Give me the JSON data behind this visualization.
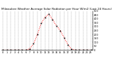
{
  "title": "Milwaukee Weather Average Solar Radiation per Hour W/m2 (Last 24 Hours)",
  "hours": [
    0,
    1,
    2,
    3,
    4,
    5,
    6,
    7,
    8,
    9,
    10,
    11,
    12,
    13,
    14,
    15,
    16,
    17,
    18,
    19,
    20,
    21,
    22,
    23
  ],
  "values": [
    0,
    0,
    0,
    0,
    0,
    0,
    0,
    15,
    80,
    200,
    340,
    420,
    460,
    390,
    310,
    250,
    160,
    70,
    10,
    0,
    0,
    0,
    0,
    0
  ],
  "line_color": "red",
  "marker": "s",
  "marker_size": 1.2,
  "linestyle": "dotted",
  "linewidth": 0.7,
  "grid_color": "#999999",
  "bg_color": "#ffffff",
  "ylim": [
    0,
    500
  ],
  "yticks": [
    0,
    50,
    100,
    150,
    200,
    250,
    300,
    350,
    400,
    450,
    500
  ],
  "title_fontsize": 3.0,
  "tick_fontsize": 2.5
}
